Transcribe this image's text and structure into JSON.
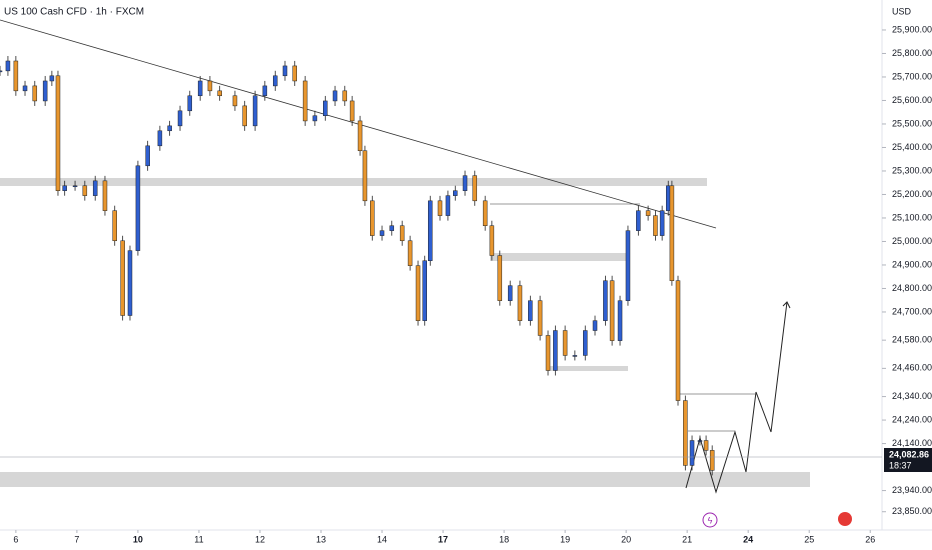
{
  "chart_data": {
    "type": "candlestick",
    "title": "US 100 Cash CFD · 1h · FXCM",
    "y_axis_label": "USD",
    "last_price": 24082.86,
    "last_price_label": "24,082.86",
    "countdown": "18:37",
    "xlim": [
      -0.26,
      14.16
    ],
    "xticks": [
      {
        "value": 0,
        "label": "6"
      },
      {
        "value": 1,
        "label": "7"
      },
      {
        "value": 2,
        "label": "10"
      },
      {
        "value": 3,
        "label": "11"
      },
      {
        "value": 4,
        "label": "12"
      },
      {
        "value": 5,
        "label": "13"
      },
      {
        "value": 6,
        "label": "14"
      },
      {
        "value": 7,
        "label": "17"
      },
      {
        "value": 8,
        "label": "18"
      },
      {
        "value": 9,
        "label": "19"
      },
      {
        "value": 10,
        "label": "20"
      },
      {
        "value": 11,
        "label": "21"
      },
      {
        "value": 12,
        "label": "24"
      },
      {
        "value": 13,
        "label": "25"
      },
      {
        "value": 14,
        "label": "26"
      }
    ],
    "ylim": [
      23802,
      26002
    ],
    "yticks": [
      {
        "value": 25900,
        "label": "25,900.00"
      },
      {
        "value": 25800,
        "label": "25,800.00"
      },
      {
        "value": 25700,
        "label": "25,700.00"
      },
      {
        "value": 25600,
        "label": "25,600.00"
      },
      {
        "value": 25500,
        "label": "25,500.00"
      },
      {
        "value": 25400,
        "label": "25,400.00"
      },
      {
        "value": 25300,
        "label": "25,300.00"
      },
      {
        "value": 25200,
        "label": "25,200.00"
      },
      {
        "value": 25100,
        "label": "25,100.00"
      },
      {
        "value": 25000,
        "label": "25,000.00"
      },
      {
        "value": 24900,
        "label": "24,900.00"
      },
      {
        "value": 24800,
        "label": "24,800.00"
      },
      {
        "value": 24700,
        "label": "24,700.00"
      },
      {
        "value": 24580,
        "label": "24,580.00"
      },
      {
        "value": 24460,
        "label": "24,460.00"
      },
      {
        "value": 24340,
        "label": "24,340.00"
      },
      {
        "value": 24240,
        "label": "24,240.00"
      },
      {
        "value": 24140,
        "label": "24,140.00"
      },
      {
        "value": 23940,
        "label": "23,940.00"
      },
      {
        "value": 23850,
        "label": "23,850.00"
      }
    ],
    "series": [
      {
        "up_color": "#2f5fd0",
        "down_color": "#e8962e",
        "x": [
          -0.26,
          -0.13,
          0,
          0.15,
          0.31,
          0.48,
          0.59,
          0.69,
          0.8,
          0.97,
          1.13,
          1.3,
          1.46,
          1.62,
          1.75,
          1.87,
          2,
          2.16,
          2.36,
          2.52,
          2.69,
          2.85,
          3.02,
          3.18,
          3.34,
          3.59,
          3.75,
          3.92,
          4.08,
          4.25,
          4.41,
          4.57,
          4.74,
          4.9,
          5.07,
          5.23,
          5.39,
          5.51,
          5.64,
          5.72,
          5.84,
          6,
          6.16,
          6.33,
          6.46,
          6.59,
          6.7,
          6.79,
          6.95,
          7.08,
          7.2,
          7.36,
          7.52,
          7.69,
          7.8,
          7.93,
          8.1,
          8.26,
          8.43,
          8.59,
          8.72,
          8.84,
          9,
          9.16,
          9.33,
          9.49,
          9.66,
          9.77,
          9.9,
          10.03,
          10.2,
          10.36,
          10.48,
          10.59,
          10.69,
          10.75,
          10.85,
          10.97,
          11.08,
          11.21,
          11.31,
          11.41
        ],
        "values": [
          25726,
          25768,
          25641,
          25662,
          25598,
          25683,
          25705,
          25216,
          25237,
          25237,
          25195,
          25258,
          25131,
          25003,
          24685,
          24961,
          25322,
          25407,
          25471,
          25492,
          25556,
          25620,
          25683,
          25641,
          25620,
          25577,
          25492,
          25620,
          25662,
          25705,
          25747,
          25683,
          25513,
          25535,
          25598,
          25641,
          25598,
          25513,
          25386,
          25173,
          25025,
          25046,
          25067,
          25003,
          24897,
          24663,
          24918,
          25173,
          25110,
          25195,
          25216,
          25280,
          25173,
          25067,
          24940,
          24748,
          24812,
          24663,
          24748,
          24600,
          24451,
          24621,
          24515,
          24515,
          24621,
          24663,
          24833,
          24578,
          24748,
          25046,
          25131,
          25110,
          25025,
          25131,
          25237,
          24833,
          24323,
          24047,
          24153,
          24153,
          24111,
          24026
        ]
      }
    ]
  }
}
